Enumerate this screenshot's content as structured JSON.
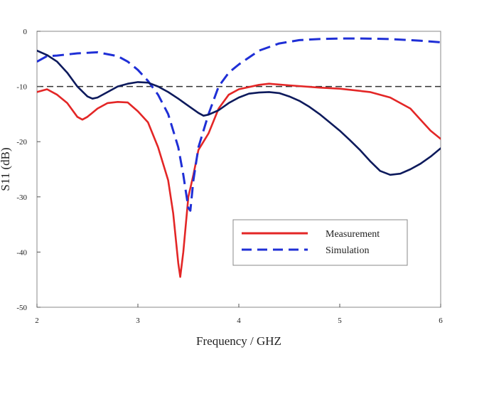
{
  "chart_data": {
    "type": "line",
    "title": "",
    "xlabel": "Frequency / GHZ",
    "ylabel": "S11 (dB)",
    "xlim": [
      2,
      6
    ],
    "ylim": [
      -50,
      0
    ],
    "x_ticks": [
      "2",
      "3",
      "4",
      "5",
      "6"
    ],
    "y_ticks": [
      "0",
      "-10",
      "-20",
      "-30",
      "-40",
      "-50"
    ],
    "grid": false,
    "legend_position": "lower-right",
    "reference_line": {
      "y": -10,
      "color": "#333333",
      "style": "dashed"
    },
    "series": [
      {
        "name": "Measurement",
        "color": "#e32626",
        "style": "solid",
        "points": [
          [
            2.0,
            -11.0
          ],
          [
            2.1,
            -10.5
          ],
          [
            2.2,
            -11.5
          ],
          [
            2.3,
            -13.0
          ],
          [
            2.4,
            -15.5
          ],
          [
            2.45,
            -16.0
          ],
          [
            2.5,
            -15.5
          ],
          [
            2.6,
            -14.0
          ],
          [
            2.7,
            -13.0
          ],
          [
            2.8,
            -12.8
          ],
          [
            2.9,
            -12.9
          ],
          [
            3.0,
            -14.5
          ],
          [
            3.1,
            -16.5
          ],
          [
            3.2,
            -21.0
          ],
          [
            3.3,
            -27.0
          ],
          [
            3.35,
            -33.0
          ],
          [
            3.4,
            -42.0
          ],
          [
            3.42,
            -44.5
          ],
          [
            3.45,
            -40.0
          ],
          [
            3.5,
            -30.0
          ],
          [
            3.55,
            -26.0
          ],
          [
            3.6,
            -21.5
          ],
          [
            3.7,
            -18.5
          ],
          [
            3.8,
            -14.0
          ],
          [
            3.9,
            -11.5
          ],
          [
            4.0,
            -10.5
          ],
          [
            4.2,
            -9.7
          ],
          [
            4.3,
            -9.5
          ],
          [
            4.5,
            -9.8
          ],
          [
            4.8,
            -10.2
          ],
          [
            5.0,
            -10.4
          ],
          [
            5.3,
            -11.0
          ],
          [
            5.5,
            -12.0
          ],
          [
            5.7,
            -14.0
          ],
          [
            5.8,
            -16.0
          ],
          [
            5.9,
            -18.0
          ],
          [
            6.0,
            -19.5
          ]
        ]
      },
      {
        "name": "Simulation",
        "color": "#1f2fd6",
        "style": "dashed",
        "points": [
          [
            2.0,
            -5.5
          ],
          [
            2.1,
            -4.5
          ],
          [
            2.2,
            -4.4
          ],
          [
            2.4,
            -4.0
          ],
          [
            2.6,
            -3.8
          ],
          [
            2.8,
            -4.5
          ],
          [
            2.9,
            -5.5
          ],
          [
            3.0,
            -7.0
          ],
          [
            3.1,
            -9.0
          ],
          [
            3.2,
            -11.5
          ],
          [
            3.3,
            -15.0
          ],
          [
            3.4,
            -21.0
          ],
          [
            3.45,
            -26.0
          ],
          [
            3.5,
            -32.0
          ],
          [
            3.52,
            -32.5
          ],
          [
            3.55,
            -27.0
          ],
          [
            3.6,
            -21.0
          ],
          [
            3.7,
            -15.0
          ],
          [
            3.8,
            -10.0
          ],
          [
            3.9,
            -7.5
          ],
          [
            4.0,
            -6.0
          ],
          [
            4.2,
            -3.5
          ],
          [
            4.4,
            -2.2
          ],
          [
            4.6,
            -1.6
          ],
          [
            4.8,
            -1.4
          ],
          [
            5.0,
            -1.3
          ],
          [
            5.2,
            -1.3
          ],
          [
            5.5,
            -1.4
          ],
          [
            5.8,
            -1.7
          ],
          [
            6.0,
            -2.0
          ]
        ]
      },
      {
        "color": "#0d1a5c",
        "style": "solid",
        "points": [
          [
            2.0,
            -3.5
          ],
          [
            2.1,
            -4.3
          ],
          [
            2.2,
            -5.5
          ],
          [
            2.3,
            -7.5
          ],
          [
            2.4,
            -10.0
          ],
          [
            2.5,
            -11.8
          ],
          [
            2.55,
            -12.2
          ],
          [
            2.6,
            -12.0
          ],
          [
            2.7,
            -11.0
          ],
          [
            2.8,
            -10.0
          ],
          [
            2.9,
            -9.5
          ],
          [
            3.0,
            -9.2
          ],
          [
            3.1,
            -9.3
          ],
          [
            3.2,
            -10.0
          ],
          [
            3.3,
            -11.0
          ],
          [
            3.4,
            -12.2
          ],
          [
            3.5,
            -13.5
          ],
          [
            3.6,
            -14.8
          ],
          [
            3.65,
            -15.3
          ],
          [
            3.7,
            -15.1
          ],
          [
            3.8,
            -14.3
          ],
          [
            3.9,
            -13.0
          ],
          [
            4.0,
            -12.0
          ],
          [
            4.1,
            -11.3
          ],
          [
            4.2,
            -11.1
          ],
          [
            4.3,
            -11.0
          ],
          [
            4.4,
            -11.2
          ],
          [
            4.5,
            -11.8
          ],
          [
            4.6,
            -12.6
          ],
          [
            4.7,
            -13.7
          ],
          [
            4.8,
            -15.0
          ],
          [
            4.9,
            -16.5
          ],
          [
            5.0,
            -18.0
          ],
          [
            5.1,
            -19.7
          ],
          [
            5.2,
            -21.5
          ],
          [
            5.3,
            -23.5
          ],
          [
            5.4,
            -25.3
          ],
          [
            5.5,
            -26.0
          ],
          [
            5.6,
            -25.8
          ],
          [
            5.7,
            -25.0
          ],
          [
            5.8,
            -24.0
          ],
          [
            5.9,
            -22.7
          ],
          [
            6.0,
            -21.2
          ]
        ]
      }
    ]
  }
}
